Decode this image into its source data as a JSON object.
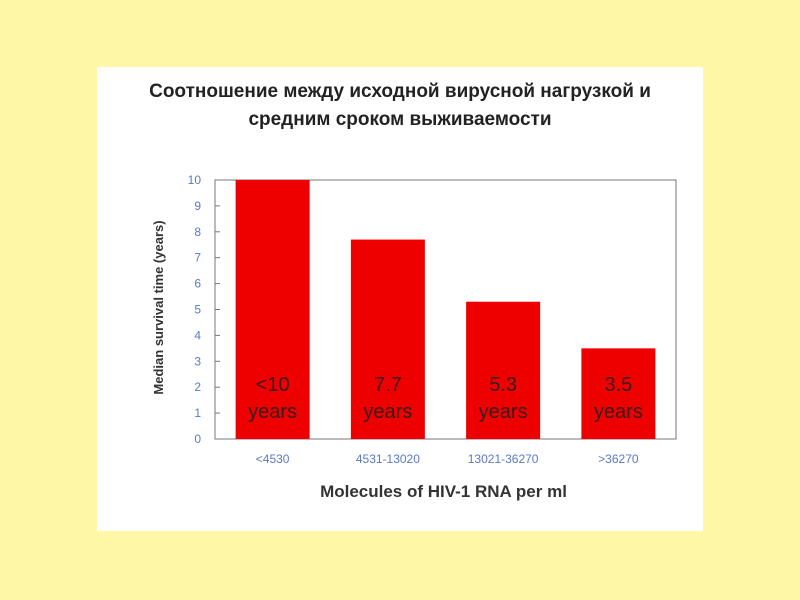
{
  "title_line_1": "Соотношение между исходной вирусной нагрузкой и",
  "title_line_2": "средним сроком выживаемости",
  "colors": {
    "background": "#fdf7a6",
    "panel": "#ffffff",
    "bar": "#ee0000",
    "tick_text": "#5a79c4",
    "axis_line": "#777777",
    "bar_text": "#3a1a1a"
  },
  "chart_data": {
    "type": "bar",
    "title": "",
    "xlabel": "Molecules of HIV-1 RNA per ml",
    "ylabel": "Median survival time (years)",
    "ylim": [
      0,
      10
    ],
    "yticks": [
      0,
      1,
      2,
      3,
      4,
      5,
      6,
      7,
      8,
      9,
      10
    ],
    "grid": false,
    "categories": [
      "<4530",
      "4531-13020",
      "13021-36270",
      ">36270"
    ],
    "values": [
      10,
      7.7,
      5.3,
      3.5
    ],
    "bar_labels": [
      [
        "<10",
        "years"
      ],
      [
        "7.7",
        "years"
      ],
      [
        "5.3",
        "years"
      ],
      [
        "3.5",
        "years"
      ]
    ]
  }
}
